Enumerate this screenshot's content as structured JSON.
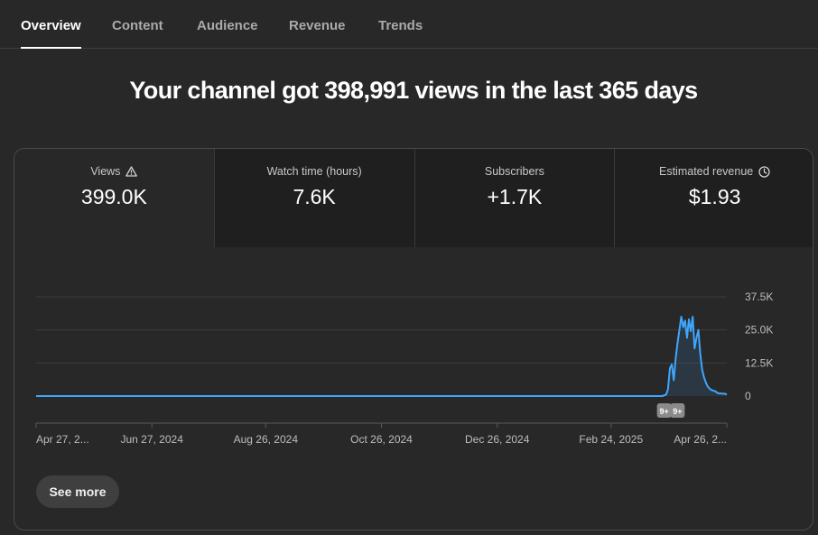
{
  "tabs": [
    {
      "label": "Overview",
      "active": true
    },
    {
      "label": "Content",
      "active": false
    },
    {
      "label": "Audience",
      "active": false
    },
    {
      "label": "Revenue",
      "active": false
    },
    {
      "label": "Trends",
      "active": false
    }
  ],
  "headline": "Your channel got 398,991 views in the last 365 days",
  "metrics": [
    {
      "label": "Views",
      "value": "399.0K",
      "icon": "warning-icon",
      "selected": true
    },
    {
      "label": "Watch time (hours)",
      "value": "7.6K",
      "selected": false
    },
    {
      "label": "Subscribers",
      "value": "+1.7K",
      "selected": false
    },
    {
      "label": "Estimated revenue",
      "value": "$1.93",
      "icon": "clock-icon",
      "selected": false
    }
  ],
  "chart_data": {
    "type": "area",
    "title": "",
    "xlabel": "",
    "ylabel": "",
    "y_ticks": [
      "37.5K",
      "25.0K",
      "12.5K",
      "0"
    ],
    "y_tick_values": [
      37500,
      25000,
      12500,
      0
    ],
    "ylim": [
      0,
      37500
    ],
    "x_ticks": [
      "Apr 27, 2...",
      "Jun 27, 2024",
      "Aug 26, 2024",
      "Oct 26, 2024",
      "Dec 26, 2024",
      "Feb 24, 2025",
      "Apr 26, 2..."
    ],
    "x_tick_days": [
      0,
      61,
      121,
      182,
      243,
      303,
      364
    ],
    "x_range_days": [
      0,
      364
    ],
    "grid": true,
    "line_color": "#3ea6ff",
    "fill_color": "#3ea6ff",
    "series": [
      {
        "values": [
          [
            0,
            0
          ],
          [
            330,
            0
          ],
          [
            332,
            500
          ],
          [
            333,
            2500
          ],
          [
            334,
            10500
          ],
          [
            335,
            12000
          ],
          [
            336,
            6000
          ],
          [
            337,
            14000
          ],
          [
            338,
            20000
          ],
          [
            339,
            25000
          ],
          [
            340,
            30000
          ],
          [
            341,
            26000
          ],
          [
            342,
            28500
          ],
          [
            343,
            22000
          ],
          [
            344,
            29000
          ],
          [
            345,
            24500
          ],
          [
            346,
            30000
          ],
          [
            347,
            18000
          ],
          [
            348,
            22000
          ],
          [
            349,
            25000
          ],
          [
            350,
            16000
          ],
          [
            351,
            10000
          ],
          [
            352,
            7000
          ],
          [
            353,
            5000
          ],
          [
            354,
            3500
          ],
          [
            355,
            2800
          ],
          [
            356,
            2200
          ],
          [
            357,
            2000
          ],
          [
            358,
            1800
          ],
          [
            359,
            1200
          ],
          [
            360,
            1000
          ],
          [
            361,
            1000
          ],
          [
            362,
            900
          ],
          [
            363,
            900
          ],
          [
            364,
            500
          ]
        ]
      }
    ],
    "markers": [
      {
        "day": 331,
        "label": "9+"
      },
      {
        "day": 338,
        "label": "9+"
      }
    ]
  },
  "see_more_label": "See more"
}
